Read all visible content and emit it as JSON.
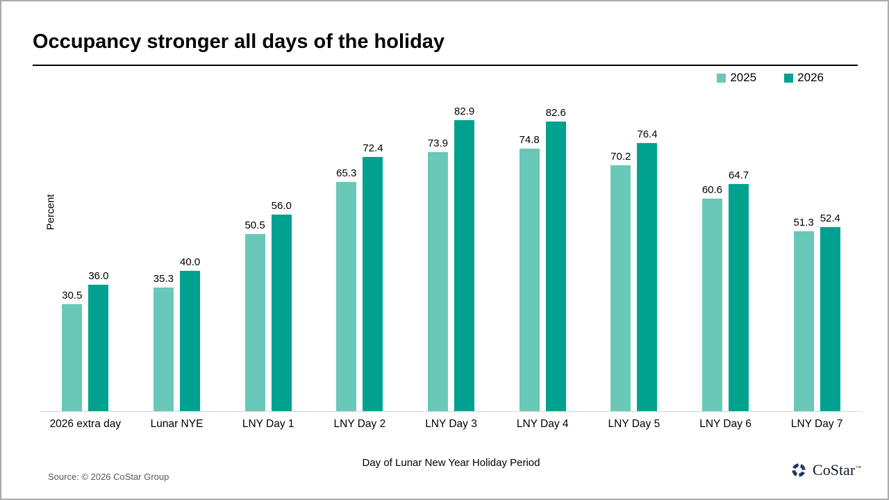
{
  "title": "Occupancy stronger all days of the holiday",
  "legend": {
    "items": [
      {
        "label": "2025",
        "color": "#69c8b8"
      },
      {
        "label": "2026",
        "color": "#00a28f"
      }
    ]
  },
  "chart_data": {
    "type": "bar",
    "title": "Occupancy stronger all days of the holiday",
    "xlabel": "Day of Lunar New Year Holiday Period",
    "ylabel": "Percent",
    "ylim": [
      0,
      91.3
    ],
    "grid": false,
    "legend_position": "top-right",
    "categories": [
      "2026 extra day",
      "Lunar NYE",
      "LNY Day 1",
      "LNY Day 2",
      "LNY Day 3",
      "LNY Day 4",
      "LNY Day 5",
      "LNY Day 6",
      "LNY Day 7"
    ],
    "series": [
      {
        "name": "2025",
        "color": "#69c8b8",
        "values": [
          30.5,
          35.3,
          50.5,
          65.3,
          73.9,
          74.8,
          70.2,
          60.6,
          51.3
        ]
      },
      {
        "name": "2026",
        "color": "#00a28f",
        "values": [
          36.0,
          40.0,
          56.0,
          72.4,
          82.9,
          82.6,
          76.4,
          64.7,
          52.4
        ]
      }
    ]
  },
  "footer": {
    "source": "Source: © 2026 CoStar Group",
    "logo_text": "CoStar",
    "logo_mark": "™",
    "logo_color": "#26355f"
  }
}
